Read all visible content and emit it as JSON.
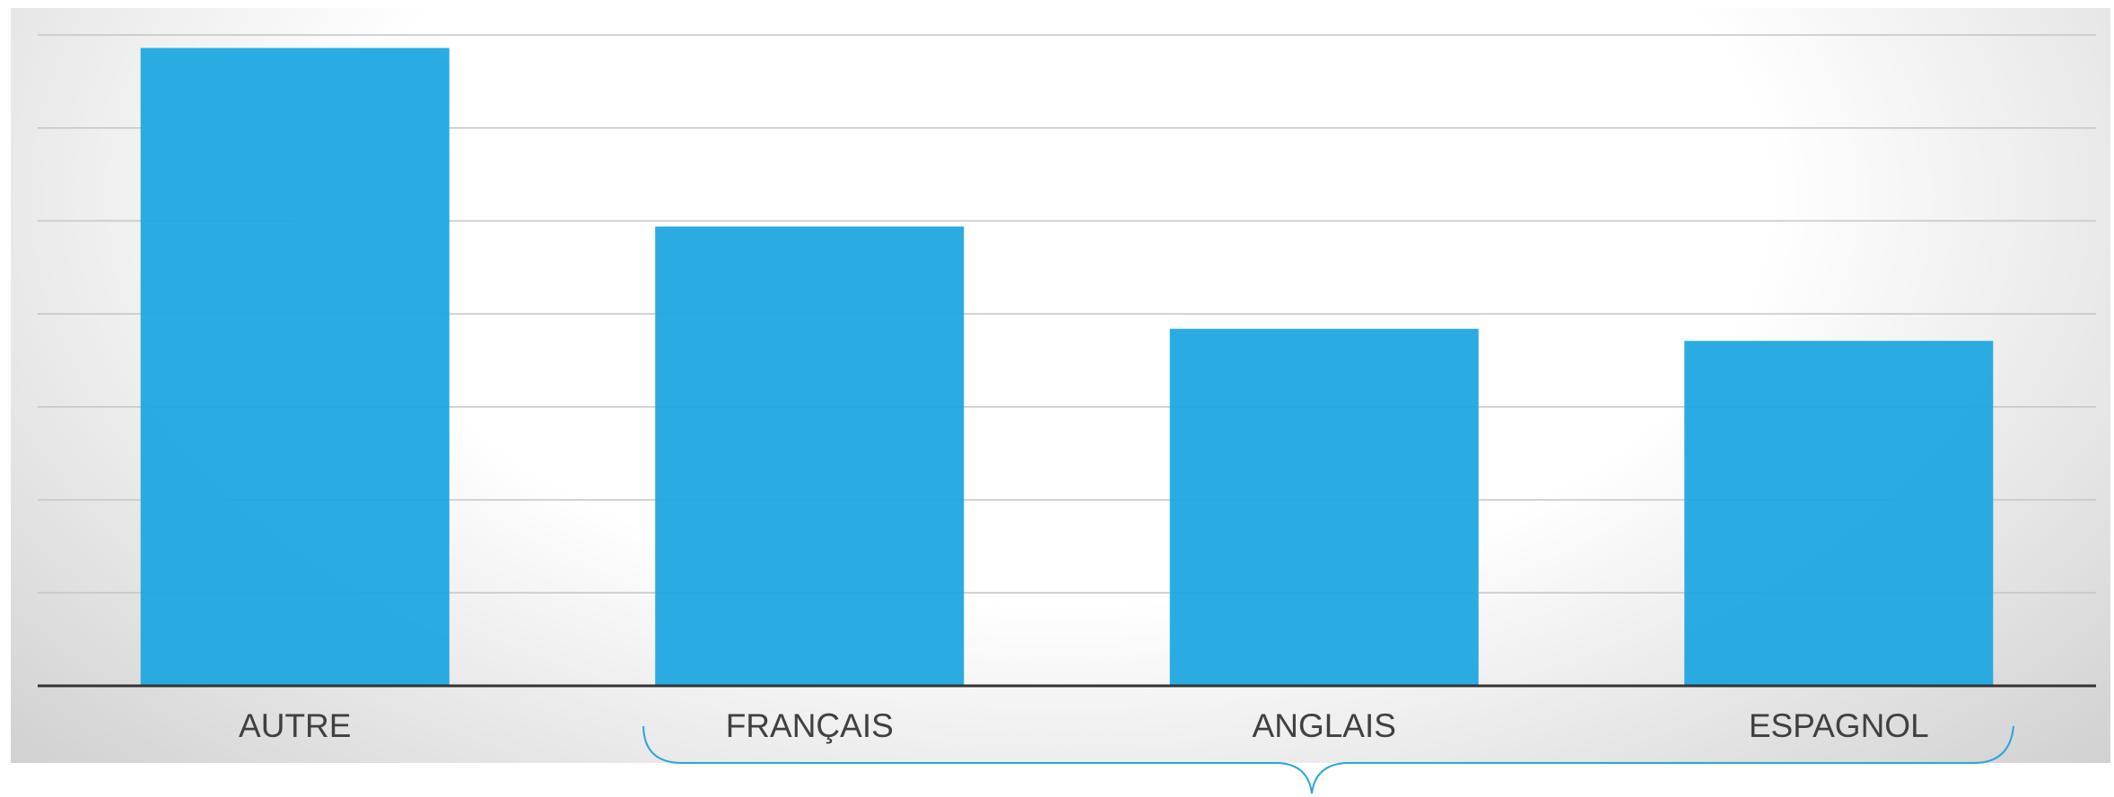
{
  "chart_data": {
    "type": "bar",
    "categories": [
      "AUTRE",
      "FRANÇAIS",
      "ANGLAIS",
      "ESPAGNOL"
    ],
    "values": [
      6.86,
      4.94,
      3.84,
      3.71
    ],
    "color": "#1fa6e0",
    "ylim": [
      0,
      7
    ],
    "yticks": [
      0,
      1,
      2,
      3,
      4,
      5,
      6,
      7
    ],
    "grid": true
  }
}
